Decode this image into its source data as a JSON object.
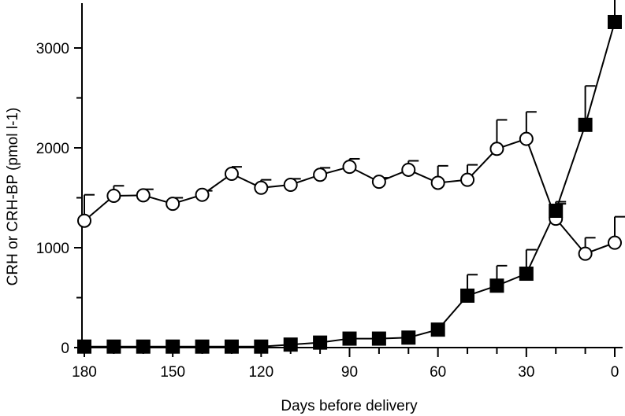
{
  "chart_data": {
    "type": "line",
    "xlabel": "Days before delivery",
    "ylabel": "CRH or CRH-BP (pmol l-1)",
    "x_reversed": true,
    "xlim": [
      180,
      0
    ],
    "ylim": [
      0,
      3400
    ],
    "xticks": [
      180,
      150,
      120,
      90,
      60,
      30,
      0
    ],
    "xtick_labels": [
      "180",
      "150",
      "120",
      "90",
      "60",
      "30",
      "0"
    ],
    "yticks": [
      0,
      1000,
      2000,
      3000
    ],
    "ytick_labels": [
      "0",
      "1000",
      "2000",
      "3000"
    ],
    "grid": false,
    "series": [
      {
        "marker": "open-circle",
        "x": [
          180,
          170,
          160,
          150,
          140,
          130,
          120,
          110,
          100,
          90,
          80,
          70,
          60,
          50,
          40,
          30,
          20,
          10,
          0
        ],
        "y": [
          1270,
          1520,
          1525,
          1440,
          1530,
          1740,
          1600,
          1630,
          1730,
          1810,
          1660,
          1780,
          1650,
          1680,
          1990,
          2090,
          1290,
          940,
          1050
        ],
        "err": [
          260,
          100,
          60,
          60,
          40,
          70,
          80,
          60,
          70,
          80,
          40,
          90,
          170,
          150,
          290,
          270,
          150,
          160,
          260
        ]
      },
      {
        "marker": "filled-square",
        "x": [
          180,
          170,
          160,
          150,
          140,
          130,
          120,
          110,
          100,
          90,
          80,
          70,
          60,
          50,
          40,
          30,
          20,
          10,
          0
        ],
        "y": [
          10,
          10,
          10,
          10,
          10,
          10,
          10,
          30,
          50,
          90,
          90,
          100,
          180,
          520,
          620,
          740,
          1370,
          2230,
          3260
        ],
        "err": [
          0,
          0,
          0,
          0,
          0,
          0,
          0,
          0,
          0,
          0,
          0,
          0,
          0,
          210,
          200,
          240,
          90,
          390,
          1180
        ]
      }
    ]
  }
}
